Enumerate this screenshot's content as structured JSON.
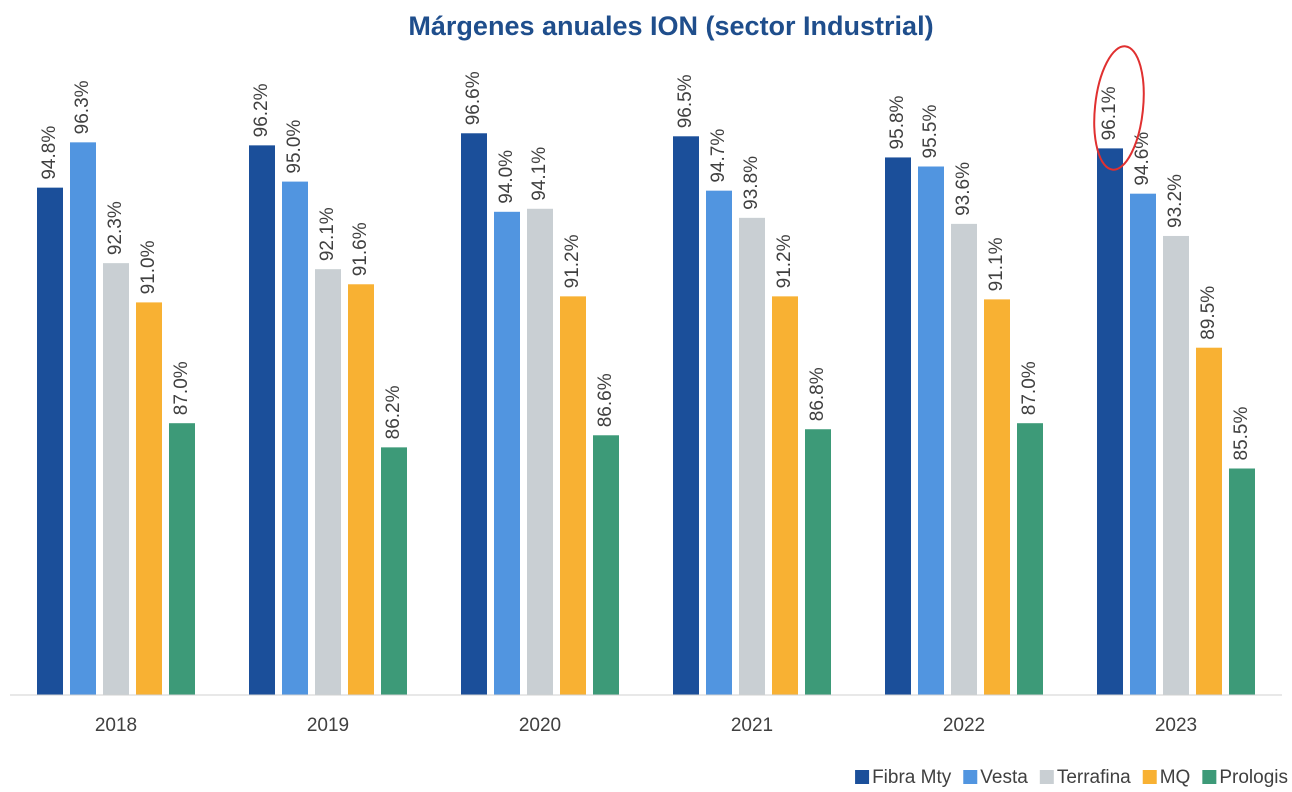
{
  "chart_data": {
    "type": "bar",
    "title": "Márgenes anuales ION (sector Industrial)",
    "categories": [
      "2018",
      "2019",
      "2020",
      "2021",
      "2022",
      "2023"
    ],
    "series": [
      {
        "name": "Fibra Mty",
        "color": "#1b4f9a",
        "values": [
          94.8,
          96.2,
          96.6,
          96.5,
          95.8,
          96.1
        ],
        "value_labels": [
          "94.8%",
          "96.2%",
          "96.6%",
          "96.5%",
          "95.8%",
          "96.1%"
        ]
      },
      {
        "name": "Vesta",
        "color": "#5195e0",
        "values": [
          96.3,
          95.0,
          94.0,
          94.7,
          95.5,
          94.6
        ],
        "value_labels": [
          "96.3%",
          "95.0%",
          "94.0%",
          "94.7%",
          "95.5%",
          "94.6%"
        ]
      },
      {
        "name": "Terrafina",
        "color": "#c9cfd3",
        "values": [
          92.3,
          92.1,
          94.1,
          93.8,
          93.6,
          93.2
        ],
        "value_labels": [
          "92.3%",
          "92.1%",
          "94.1%",
          "93.8%",
          "93.6%",
          "93.2%"
        ]
      },
      {
        "name": "MQ",
        "color": "#f8b133",
        "values": [
          91.0,
          91.6,
          91.2,
          91.2,
          91.1,
          89.5
        ],
        "value_labels": [
          "91.0%",
          "91.6%",
          "91.2%",
          "91.2%",
          "91.1%",
          "89.5%"
        ]
      },
      {
        "name": "Prologis",
        "color": "#3d9a78",
        "values": [
          87.0,
          86.2,
          86.6,
          86.8,
          87.0,
          85.5
        ],
        "value_labels": [
          "87.0%",
          "86.2%",
          "86.6%",
          "86.8%",
          "87.0%",
          "85.5%"
        ]
      }
    ],
    "ylim": [
      78,
      98
    ],
    "legend": "bottom-right"
  }
}
